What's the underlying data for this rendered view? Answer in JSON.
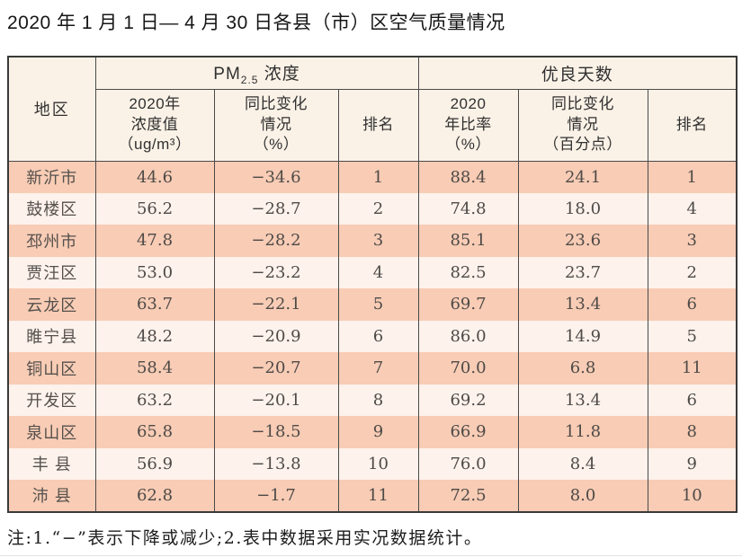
{
  "page": {
    "title": "2020 年 1 月 1 日— 4 月 30 日各县（市）区空气质量情况",
    "footnote": "注:1.“−”表示下降或减少;2.表中数据采用实况数据统计。"
  },
  "table": {
    "header": {
      "region": "地区",
      "pm_group": {
        "prefix": "PM",
        "sub": "2.5",
        "suffix": " 浓度"
      },
      "good_days_group": "优良天数",
      "sub_columns": [
        "2020年\n浓度值\n（ug/m³）",
        "同比变化\n情况\n（%）",
        "排名",
        "2020\n年比率\n（%）",
        "同比变化\n情况\n（百分点）",
        "排名"
      ]
    },
    "rows": [
      [
        "新沂市",
        "44.6",
        "−34.6",
        "1",
        "88.4",
        "24.1",
        "1"
      ],
      [
        "鼓楼区",
        "56.2",
        "−28.7",
        "2",
        "74.8",
        "18.0",
        "4"
      ],
      [
        "邳州市",
        "47.8",
        "−28.2",
        "3",
        "85.1",
        "23.6",
        "3"
      ],
      [
        "贾汪区",
        "53.0",
        "−23.2",
        "4",
        "82.5",
        "23.7",
        "2"
      ],
      [
        "云龙区",
        "63.7",
        "−22.1",
        "5",
        "69.7",
        "13.4",
        "6"
      ],
      [
        "睢宁县",
        "48.2",
        "−20.9",
        "6",
        "86.0",
        "14.9",
        "5"
      ],
      [
        "铜山区",
        "58.4",
        "−20.7",
        "7",
        "70.0",
        "6.8",
        "11"
      ],
      [
        "开发区",
        "63.2",
        "−20.1",
        "8",
        "69.2",
        "13.4",
        "6"
      ],
      [
        "泉山区",
        "65.8",
        "−18.5",
        "9",
        "66.9",
        "11.8",
        "8"
      ],
      [
        "丰 县",
        "56.9",
        "−13.8",
        "10",
        "76.0",
        "8.4",
        "9"
      ],
      [
        "沛 县",
        "62.8",
        "−1.7",
        "11",
        "72.5",
        "8.0",
        "10"
      ]
    ]
  },
  "colors": {
    "row_odd_bg": "#f8ccb5",
    "row_even_bg": "#fdf2ec",
    "header_bg": "#fbf2e7",
    "border": "#4a4a4a"
  }
}
